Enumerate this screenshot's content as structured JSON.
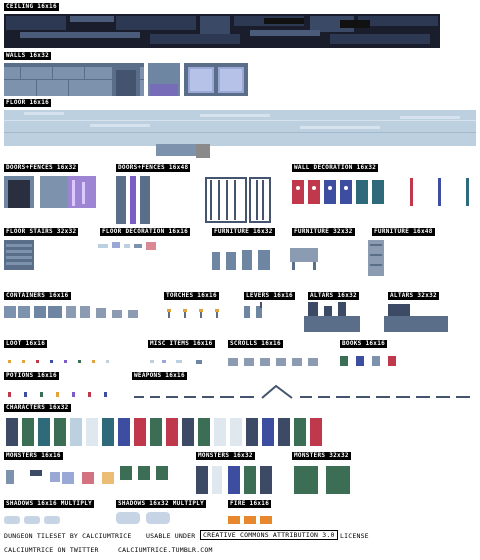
{
  "labels": {
    "ceiling": "CEILING 16x16",
    "walls": "WALLS 16x32",
    "floor": "FLOOR 16x16",
    "doors_fences_1": "DOORS+FENCES 16x32",
    "doors_fences_2": "DOORS+FENCES 16x48",
    "wall_decoration": "WALL DECORATION 16x32",
    "floor_stairs": "FLOOR STAIRS 32x32",
    "floor_decoration": "FLOOR DECORATION 16x16",
    "furniture_1": "FURNITURE 16x32",
    "furniture_2": "FURNITURE 32x32",
    "furniture_3": "FURNITURE 16x48",
    "containers": "CONTAINERS 16x16",
    "torches": "TORCHES 16x16",
    "levers": "LEVERS 16x16",
    "altars_1": "ALTARS 16x32",
    "altars_2": "ALTARS 32x32",
    "loot": "LOOT 16x16",
    "misc_items": "MISC ITEMS 16x16",
    "scrolls": "SCROLLS 16x16",
    "books": "BOOKS 16x16",
    "potions": "POTIONS 16x16",
    "weapons": "WEAPONS 16x16",
    "characters": "CHARACTERS 16x32",
    "monsters_1": "MONSTERS 16x16",
    "monsters_2": "MONSTERS 16x32",
    "monsters_3": "MONSTERS 32x32",
    "shadows_1": "SHADOWS 16x16 MULTIPLY",
    "shadows_2": "SHADOWS 16x32 MULTIPLY",
    "fire": "FIRE 16x16"
  },
  "credits": {
    "line1_a": "DUNGEON TILESET BY CALCIUMTRICE",
    "line1_b": "USABLE UNDER",
    "line1_c": "CREATIVE COMMONS ATTRIBUTION 3.0",
    "line1_d": "LICENSE",
    "line2_a": "CALCIUMTRICE ON TWITTER",
    "line2_b": "CALCIUMTRICE.TUMBLR.COM"
  },
  "colors": {
    "ceiling_dark": "#1a1d2b",
    "ceiling_mid": "#3a4a66",
    "wall": "#7d93ad",
    "wall_dark": "#5b6e89",
    "floor": "#bcd0e0",
    "banner_red": "#c0384c",
    "banner_blue": "#3d4ea0",
    "banner_teal": "#2f6a7a",
    "purple": "#7c5cc6",
    "gold": "#e4a23a",
    "green_char": "#3b6e55",
    "fire": "#e7882d"
  }
}
